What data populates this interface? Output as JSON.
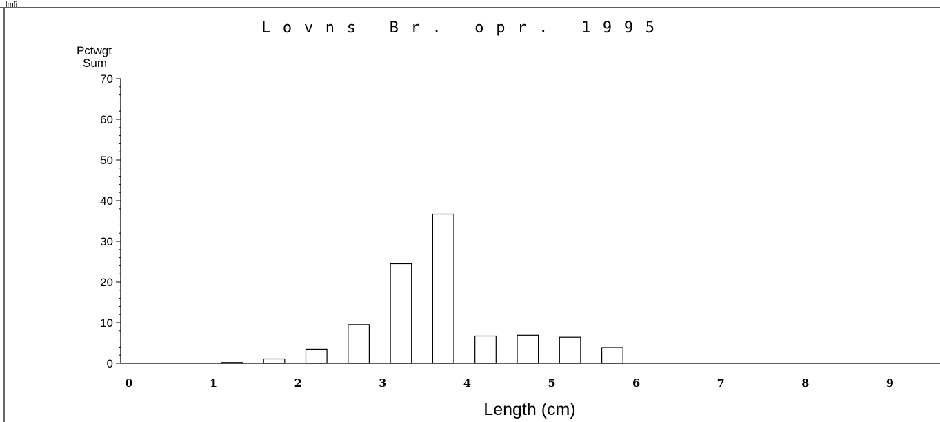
{
  "corner_label": "lmfi",
  "chart_data": {
    "type": "bar",
    "title": "Lovns Br. opr. 1995",
    "ylabel_lines": [
      "Pctwgt",
      "Sum"
    ],
    "xlabel": "Length (cm)",
    "xlim": [
      0,
      9.5
    ],
    "ylim": [
      0,
      70
    ],
    "xticks": [
      0,
      1,
      2,
      3,
      4,
      5,
      6,
      7,
      8,
      9
    ],
    "yticks": [
      0,
      10,
      20,
      30,
      40,
      50,
      60,
      70
    ],
    "bar_width": 0.25,
    "x": [
      1.25,
      1.75,
      2.25,
      2.75,
      3.25,
      3.75,
      4.25,
      4.75,
      5.25,
      5.75
    ],
    "values": [
      0.2,
      1.1,
      3.5,
      9.5,
      24.5,
      36.7,
      6.7,
      6.9,
      6.4,
      3.9
    ],
    "grid": false,
    "legend": "none"
  }
}
